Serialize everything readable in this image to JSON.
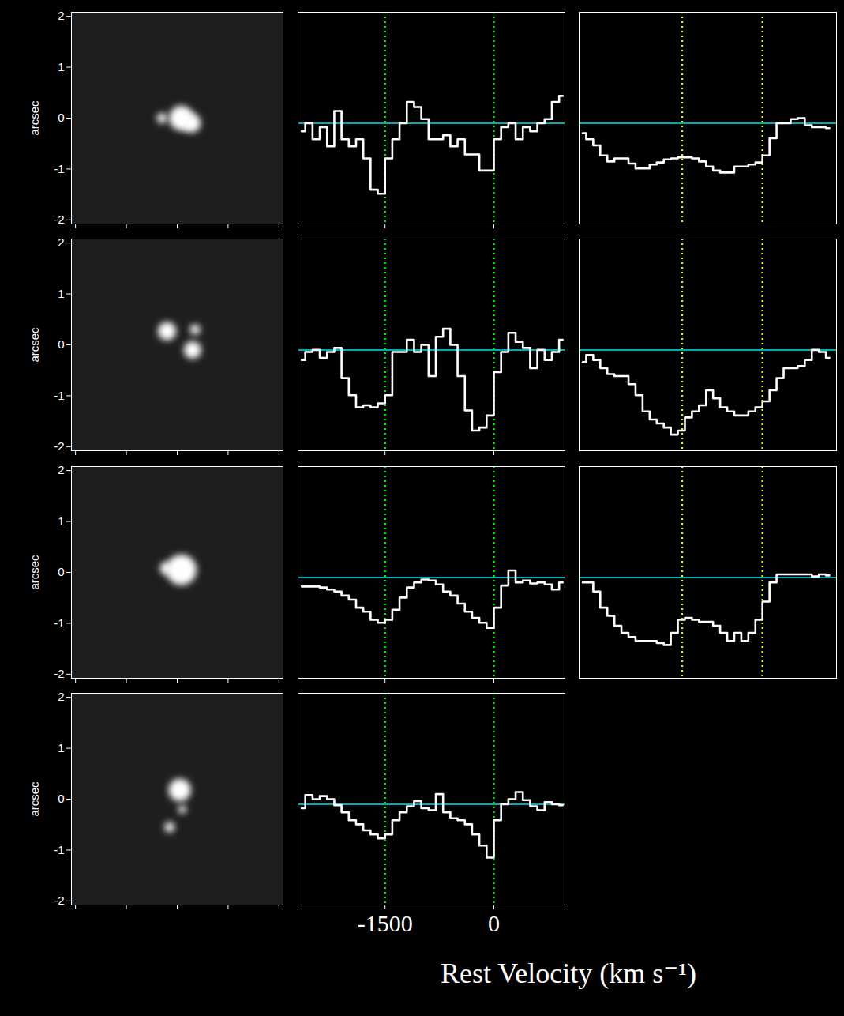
{
  "chart_data": [
    {
      "type": "image",
      "xlim": [
        -2.08,
        2.08
      ],
      "ylim": [
        -2.08,
        2.08
      ],
      "xticks": [
        -2,
        -1,
        0,
        1,
        2
      ],
      "yticks": [
        -2,
        -1,
        0,
        1,
        2
      ],
      "ylabel": "arcsec",
      "tick_labels": "y",
      "color": "#ffffff",
      "sources": [
        {
          "x": 0.08,
          "y": 0.0,
          "size": 0.24
        },
        {
          "x": 0.28,
          "y": -0.1,
          "size": 0.18
        },
        {
          "x": -0.3,
          "y": 0.0,
          "size": 0.1
        }
      ]
    },
    {
      "type": "line",
      "line_style": "step",
      "color": "#ffffff",
      "xlim": [
        -2700,
        980
      ],
      "ylim": [
        0,
        2.1
      ],
      "xticks": [
        -1500,
        0
      ],
      "tick_labels": false,
      "x": [
        -2650,
        -2550,
        -2450,
        -2350,
        -2250,
        -2150,
        -2050,
        -1950,
        -1850,
        -1750,
        -1650,
        -1550,
        -1450,
        -1350,
        -1250,
        -1150,
        -1050,
        -950,
        -850,
        -750,
        -650,
        -550,
        -450,
        -350,
        -250,
        -150,
        -50,
        50,
        150,
        250,
        350,
        450,
        550,
        650,
        750,
        850,
        950
      ],
      "values": [
        0.92,
        1.0,
        0.84,
        0.96,
        0.77,
        1.12,
        0.84,
        0.77,
        0.84,
        0.65,
        0.34,
        0.3,
        0.65,
        0.84,
        1.0,
        1.21,
        1.16,
        1.04,
        0.84,
        0.84,
        0.88,
        0.77,
        0.84,
        0.69,
        0.69,
        0.53,
        0.53,
        0.84,
        0.96,
        1.0,
        0.84,
        0.96,
        0.92,
        1.0,
        1.04,
        1.21,
        1.27
      ],
      "hlines": [
        {
          "values": [
            1
          ],
          "color": "#00e5ee"
        }
      ],
      "vlines": [
        {
          "values": [
            -1500,
            0
          ],
          "color": "#00ee00",
          "line_style": "dotted"
        }
      ]
    },
    {
      "type": "line",
      "line_style": "step",
      "color": "#ffffff",
      "xlim": [
        -2600,
        1050
      ],
      "ylim": [
        0,
        2.1
      ],
      "tick_labels": false,
      "x": [
        -2550,
        -2450,
        -2350,
        -2250,
        -2150,
        -2050,
        -1950,
        -1850,
        -1750,
        -1650,
        -1550,
        -1450,
        -1350,
        -1250,
        -1150,
        -1050,
        -950,
        -850,
        -750,
        -650,
        -550,
        -450,
        -350,
        -250,
        -150,
        -50,
        50,
        150,
        250,
        350,
        450,
        550,
        650,
        750,
        850,
        950
      ],
      "values": [
        0.9,
        0.84,
        0.78,
        0.68,
        0.62,
        0.65,
        0.65,
        0.6,
        0.55,
        0.55,
        0.59,
        0.61,
        0.64,
        0.65,
        0.66,
        0.66,
        0.65,
        0.62,
        0.57,
        0.53,
        0.51,
        0.51,
        0.57,
        0.57,
        0.59,
        0.61,
        0.68,
        0.85,
        1.0,
        1.0,
        1.04,
        1.05,
        0.98,
        0.96,
        0.96,
        0.95
      ],
      "hlines": [
        {
          "values": [
            1
          ],
          "color": "#00e5ee"
        }
      ],
      "vlines": [
        {
          "values": [
            -1140,
            0
          ],
          "color": "#eeee00",
          "line_style": "dotted"
        }
      ]
    },
    {
      "type": "image",
      "xlim": [
        -2.08,
        2.08
      ],
      "ylim": [
        -2.08,
        2.08
      ],
      "xticks": [
        -2,
        -1,
        0,
        1,
        2
      ],
      "yticks": [
        -2,
        -1,
        0,
        1,
        2
      ],
      "ylabel": "arcsec",
      "tick_labels": "y",
      "color": "#ffffff",
      "sources": [
        {
          "x": -0.2,
          "y": 0.27,
          "size": 0.18
        },
        {
          "x": 0.3,
          "y": -0.1,
          "size": 0.17
        },
        {
          "x": 0.35,
          "y": 0.3,
          "size": 0.1
        }
      ]
    },
    {
      "type": "line",
      "line_style": "step",
      "color": "#ffffff",
      "xlim": [
        -2700,
        980
      ],
      "ylim": [
        0,
        2.1
      ],
      "xticks": [
        -1500,
        0
      ],
      "tick_labels": false,
      "x": [
        -2650,
        -2550,
        -2450,
        -2350,
        -2250,
        -2150,
        -2050,
        -1950,
        -1850,
        -1750,
        -1650,
        -1550,
        -1450,
        -1350,
        -1250,
        -1150,
        -1050,
        -950,
        -850,
        -750,
        -650,
        -550,
        -450,
        -350,
        -250,
        -150,
        -50,
        50,
        150,
        250,
        350,
        450,
        550,
        650,
        750,
        850,
        950
      ],
      "values": [
        0.9,
        0.98,
        1.0,
        0.92,
        0.98,
        1.02,
        0.72,
        0.55,
        0.43,
        0.45,
        0.43,
        0.47,
        0.55,
        0.98,
        0.98,
        1.1,
        0.98,
        1.05,
        0.74,
        1.13,
        1.21,
        1.05,
        0.74,
        0.4,
        0.2,
        0.23,
        0.35,
        0.78,
        0.98,
        1.17,
        1.08,
        1.02,
        0.82,
        1.0,
        0.9,
        0.98,
        1.1
      ],
      "hlines": [
        {
          "values": [
            1
          ],
          "color": "#00e5ee"
        }
      ],
      "vlines": [
        {
          "values": [
            -1500,
            0
          ],
          "color": "#00ee00",
          "line_style": "dotted"
        }
      ]
    },
    {
      "type": "line",
      "line_style": "step",
      "color": "#ffffff",
      "xlim": [
        -2600,
        1050
      ],
      "ylim": [
        0,
        2.1
      ],
      "tick_labels": false,
      "x": [
        -2550,
        -2450,
        -2350,
        -2250,
        -2150,
        -2050,
        -1950,
        -1850,
        -1750,
        -1650,
        -1550,
        -1450,
        -1350,
        -1250,
        -1150,
        -1050,
        -950,
        -850,
        -750,
        -650,
        -550,
        -450,
        -350,
        -250,
        -150,
        -50,
        50,
        150,
        250,
        350,
        450,
        550,
        650,
        750,
        850,
        950
      ],
      "values": [
        0.88,
        0.95,
        0.9,
        0.82,
        0.76,
        0.74,
        0.74,
        0.66,
        0.55,
        0.39,
        0.31,
        0.27,
        0.23,
        0.16,
        0.2,
        0.33,
        0.39,
        0.45,
        0.6,
        0.52,
        0.43,
        0.39,
        0.35,
        0.35,
        0.39,
        0.43,
        0.49,
        0.6,
        0.72,
        0.82,
        0.82,
        0.84,
        0.9,
        1.0,
        0.98,
        0.92
      ],
      "hlines": [
        {
          "values": [
            1
          ],
          "color": "#00e5ee"
        }
      ],
      "vlines": [
        {
          "values": [
            -1140,
            0
          ],
          "color": "#eeee00",
          "line_style": "dotted"
        }
      ]
    },
    {
      "type": "image",
      "xlim": [
        -2.08,
        2.08
      ],
      "ylim": [
        -2.08,
        2.08
      ],
      "xticks": [
        -2,
        -1,
        0,
        1,
        2
      ],
      "yticks": [
        -2,
        -1,
        0,
        1,
        2
      ],
      "ylabel": "arcsec",
      "tick_labels": "y",
      "color": "#ffffff",
      "sources": [
        {
          "x": 0.08,
          "y": 0.05,
          "size": 0.3
        },
        {
          "x": -0.22,
          "y": 0.08,
          "size": 0.12
        }
      ]
    },
    {
      "type": "line",
      "line_style": "step",
      "color": "#ffffff",
      "xlim": [
        -2700,
        980
      ],
      "ylim": [
        0,
        2.1
      ],
      "xticks": [
        -1500,
        0
      ],
      "tick_labels": false,
      "x": [
        -2650,
        -2550,
        -2450,
        -2350,
        -2250,
        -2150,
        -2050,
        -1950,
        -1850,
        -1750,
        -1650,
        -1550,
        -1450,
        -1350,
        -1250,
        -1150,
        -1050,
        -950,
        -850,
        -750,
        -650,
        -550,
        -450,
        -350,
        -250,
        -150,
        -50,
        50,
        150,
        250,
        350,
        450,
        550,
        650,
        750,
        850,
        950
      ],
      "values": [
        0.91,
        0.91,
        0.91,
        0.9,
        0.88,
        0.86,
        0.82,
        0.78,
        0.7,
        0.66,
        0.58,
        0.55,
        0.58,
        0.68,
        0.8,
        0.9,
        0.95,
        0.98,
        0.97,
        0.93,
        0.86,
        0.82,
        0.74,
        0.66,
        0.6,
        0.55,
        0.5,
        0.7,
        0.92,
        1.07,
        0.95,
        0.97,
        0.94,
        0.95,
        0.93,
        0.88,
        0.95
      ],
      "hlines": [
        {
          "values": [
            1
          ],
          "color": "#00e5ee"
        }
      ],
      "vlines": [
        {
          "values": [
            -1500,
            0
          ],
          "color": "#00ee00",
          "line_style": "dotted"
        }
      ]
    },
    {
      "type": "line",
      "line_style": "step",
      "color": "#ffffff",
      "xlim": [
        -2600,
        1050
      ],
      "ylim": [
        0,
        2.1
      ],
      "tick_labels": false,
      "x": [
        -2550,
        -2450,
        -2350,
        -2250,
        -2150,
        -2050,
        -1950,
        -1850,
        -1750,
        -1650,
        -1550,
        -1450,
        -1350,
        -1250,
        -1150,
        -1050,
        -950,
        -850,
        -750,
        -650,
        -550,
        -450,
        -350,
        -250,
        -150,
        -50,
        50,
        150,
        250,
        350,
        450,
        550,
        650,
        750,
        850,
        950
      ],
      "values": [
        0.95,
        0.95,
        0.86,
        0.7,
        0.62,
        0.52,
        0.45,
        0.41,
        0.37,
        0.37,
        0.37,
        0.35,
        0.33,
        0.45,
        0.58,
        0.6,
        0.58,
        0.56,
        0.56,
        0.52,
        0.45,
        0.37,
        0.45,
        0.37,
        0.45,
        0.58,
        0.76,
        0.95,
        1.03,
        1.03,
        1.03,
        1.03,
        1.03,
        1.01,
        1.03,
        1.02
      ],
      "hlines": [
        {
          "values": [
            1
          ],
          "color": "#00e5ee"
        }
      ],
      "vlines": [
        {
          "values": [
            -1140,
            0
          ],
          "color": "#eeee00",
          "line_style": "dotted"
        }
      ]
    },
    {
      "type": "image",
      "xlim": [
        -2.08,
        2.08
      ],
      "ylim": [
        -2.08,
        2.08
      ],
      "xticks": [
        -2,
        -1,
        0,
        1,
        2
      ],
      "yticks": [
        -2,
        -1,
        0,
        1,
        2
      ],
      "ylabel": "arcsec",
      "tick_labels": "y",
      "color": "#ffffff",
      "sources": [
        {
          "x": 0.05,
          "y": 0.18,
          "size": 0.22
        },
        {
          "x": 0.1,
          "y": -0.2,
          "size": 0.08
        },
        {
          "x": -0.15,
          "y": -0.55,
          "size": 0.1
        }
      ]
    },
    {
      "type": "line",
      "line_style": "step",
      "color": "#ffffff",
      "xlim": [
        -2700,
        980
      ],
      "ylim": [
        0,
        2.1
      ],
      "xticks": [
        -1500,
        0
      ],
      "tick_labels": "x",
      "xlabel": "Rest Velocity (km s⁻¹)",
      "x": [
        -2650,
        -2550,
        -2450,
        -2350,
        -2250,
        -2150,
        -2050,
        -1950,
        -1850,
        -1750,
        -1650,
        -1550,
        -1450,
        -1350,
        -1250,
        -1150,
        -1050,
        -950,
        -850,
        -750,
        -650,
        -550,
        -450,
        -350,
        -250,
        -150,
        -50,
        50,
        150,
        250,
        350,
        450,
        550,
        650,
        750,
        850,
        950
      ],
      "values": [
        0.96,
        1.09,
        1.05,
        1.08,
        1.05,
        0.99,
        0.92,
        0.84,
        0.8,
        0.74,
        0.7,
        0.66,
        0.7,
        0.84,
        0.92,
        0.98,
        1.03,
        0.96,
        0.94,
        1.1,
        0.92,
        0.86,
        0.84,
        0.8,
        0.7,
        0.59,
        0.47,
        0.84,
        1.0,
        1.05,
        1.12,
        1.04,
        0.98,
        0.94,
        1.02,
        1.0,
        0.99
      ],
      "hlines": [
        {
          "values": [
            1
          ],
          "color": "#00e5ee"
        }
      ],
      "vlines": [
        {
          "values": [
            -1500,
            0
          ],
          "color": "#00ee00",
          "line_style": "dotted"
        }
      ]
    }
  ]
}
